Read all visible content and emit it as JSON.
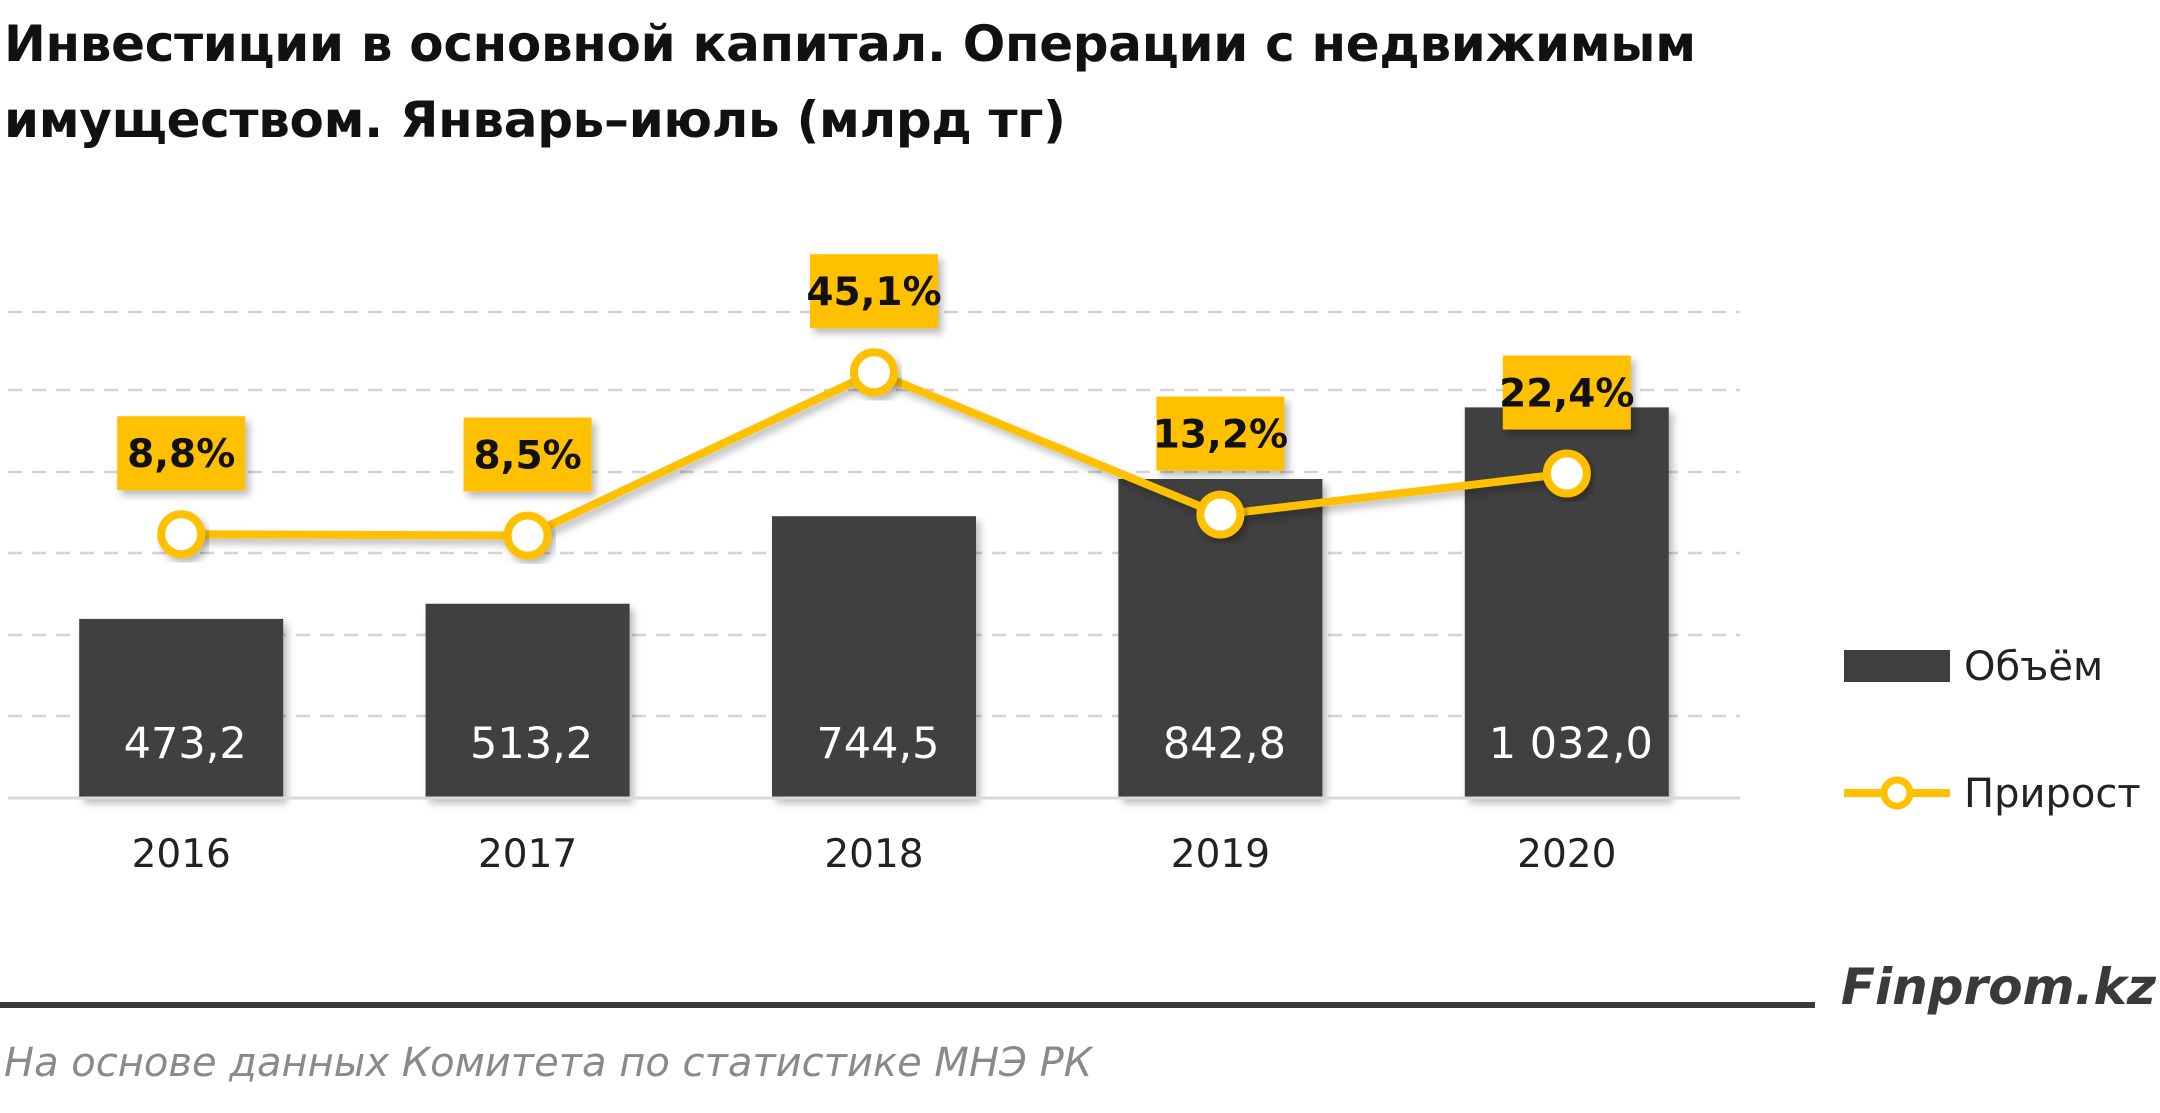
{
  "header": {
    "title_line1": "Инвестиции в основной капитал. Операции с недвижимым",
    "title_line2": "имуществом. Январь–июль (млрд тг)"
  },
  "chart_data": {
    "type": "bar",
    "categories": [
      "2016",
      "2017",
      "2018",
      "2019",
      "2020"
    ],
    "series": [
      {
        "name": "Объём",
        "type": "bar",
        "values": [
          473.2,
          513.2,
          744.5,
          842.8,
          1032.0
        ],
        "labels": [
          "473,2",
          "513,2",
          "744,5",
          "842,8",
          "1 032,0"
        ],
        "color": "#3f3f3f"
      },
      {
        "name": "Прирост",
        "type": "line",
        "values": [
          8.8,
          8.5,
          45.1,
          13.2,
          22.4
        ],
        "labels": [
          "8,8%",
          "8,5%",
          "45,1%",
          "13,2%",
          "22,4%"
        ],
        "color": "#ffc000"
      }
    ],
    "legend": "right",
    "grid": true
  },
  "footer": {
    "brand": "Finprom.kz",
    "source": "На основе данных  Комитета по статистике МНЭ РК"
  },
  "colors": {
    "bar": "#3f3f3f",
    "line": "#ffc000",
    "grid": "#d4d4d4",
    "axis": "#d9d9d9"
  }
}
